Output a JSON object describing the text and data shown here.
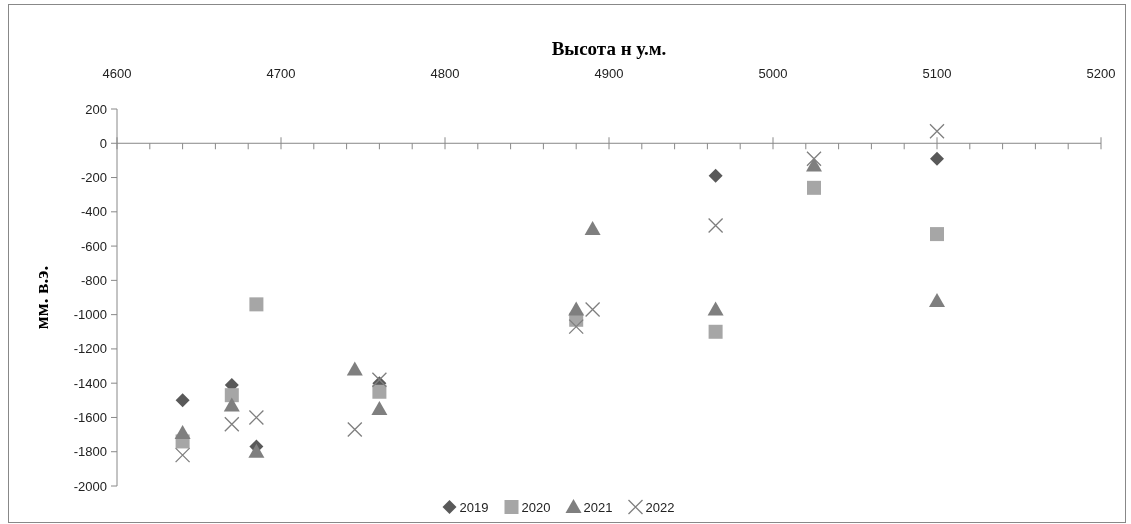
{
  "chart_data": {
    "type": "scatter",
    "xlabel": "Высота н у.м.",
    "ylabel": "мм. в.э.",
    "xlim": [
      4600,
      5200
    ],
    "ylim": [
      -2000,
      200
    ],
    "xticks": [
      4600,
      {
        "value": 4620,
        "label": null
      },
      {
        "value": 4640,
        "label": null
      },
      {
        "value": 4660,
        "label": null
      },
      {
        "value": 4680,
        "label": null
      },
      4700,
      {
        "value": 4720,
        "label": null
      },
      {
        "value": 4740,
        "label": null
      },
      {
        "value": 4760,
        "label": null
      },
      {
        "value": 4780,
        "label": null
      },
      4800,
      {
        "value": 4820,
        "label": null
      },
      {
        "value": 4840,
        "label": null
      },
      {
        "value": 4860,
        "label": null
      },
      {
        "value": 4880,
        "label": null
      },
      4900,
      {
        "value": 4920,
        "label": null
      },
      {
        "value": 4940,
        "label": null
      },
      {
        "value": 4960,
        "label": null
      },
      {
        "value": 4980,
        "label": null
      },
      5000,
      {
        "value": 5020,
        "label": null
      },
      {
        "value": 5040,
        "label": null
      },
      {
        "value": 5060,
        "label": null
      },
      {
        "value": 5080,
        "label": null
      },
      5100,
      {
        "value": 5120,
        "label": null
      },
      {
        "value": 5140,
        "label": null
      },
      {
        "value": 5160,
        "label": null
      },
      {
        "value": 5180,
        "label": null
      },
      5200
    ],
    "yticks": [
      -2000,
      -1800,
      -1600,
      -1400,
      -1200,
      -1000,
      -800,
      -600,
      -400,
      -200,
      0,
      200
    ],
    "legend": "bottom",
    "series": [
      {
        "name": "2019",
        "color": "#595959",
        "marker": "diamond",
        "x": [
          4640,
          4670,
          4685,
          4760,
          4965,
          5100
        ],
        "values": [
          -1500,
          -1410,
          -1770,
          -1400,
          -190,
          -90
        ]
      },
      {
        "name": "2020",
        "color": "#a6a6a6",
        "marker": "square",
        "x": [
          4640,
          4670,
          4685,
          4760,
          4880,
          4965,
          5025,
          5100
        ],
        "values": [
          -1740,
          -1470,
          -940,
          -1450,
          -1030,
          -1100,
          -260,
          -530
        ]
      },
      {
        "name": "2021",
        "color": "#7f7f7f",
        "marker": "triangle",
        "x": [
          4640,
          4670,
          4685,
          4745,
          4760,
          4880,
          4890,
          4965,
          5025,
          5100
        ],
        "values": [
          -1690,
          -1530,
          -1800,
          -1320,
          -1550,
          -970,
          -500,
          -970,
          -130,
          -920
        ]
      },
      {
        "name": "2022",
        "color": "#7f7f7f",
        "marker": "cross",
        "x": [
          4640,
          4670,
          4685,
          4745,
          4760,
          4880,
          4890,
          4965,
          5025,
          5100
        ],
        "values": [
          -1820,
          -1640,
          -1600,
          -1670,
          -1380,
          -1070,
          -970,
          -480,
          -90,
          70
        ]
      }
    ]
  }
}
